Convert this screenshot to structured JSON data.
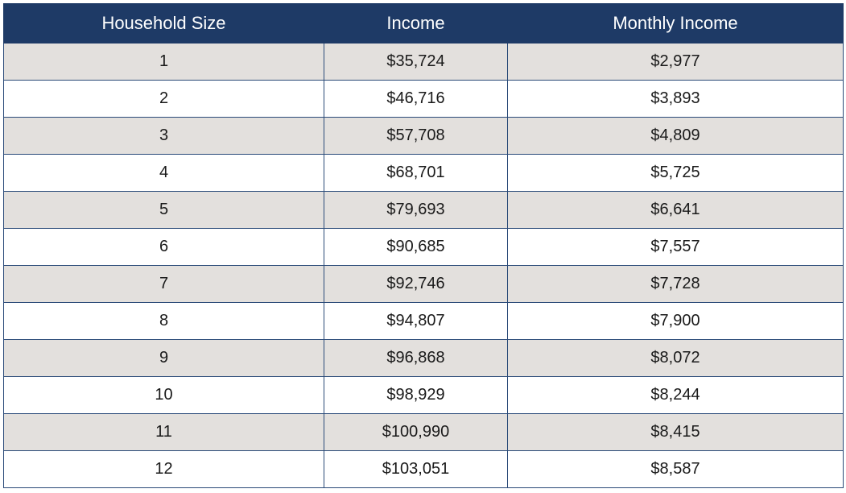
{
  "table": {
    "headers": [
      "Household Size",
      "Income",
      "Monthly Income"
    ],
    "rows": [
      [
        "1",
        "$35,724",
        "$2,977"
      ],
      [
        "2",
        "$46,716",
        "$3,893"
      ],
      [
        "3",
        "$57,708",
        "$4,809"
      ],
      [
        "4",
        "$68,701",
        "$5,725"
      ],
      [
        "5",
        "$79,693",
        "$6,641"
      ],
      [
        "6",
        "$90,685",
        "$7,557"
      ],
      [
        "7",
        "$92,746",
        "$7,728"
      ],
      [
        "8",
        "$94,807",
        "$7,900"
      ],
      [
        "9",
        "$96,868",
        "$8,072"
      ],
      [
        "10",
        "$98,929",
        "$8,244"
      ],
      [
        "11",
        "$100,990",
        "$8,415"
      ],
      [
        "12",
        "$103,051",
        "$8,587"
      ]
    ]
  },
  "colors": {
    "header_bg": "#1e3a66",
    "header_text": "#ffffff",
    "shaded_row_bg": "#e3e0dd",
    "plain_row_bg": "#ffffff",
    "border": "#2a4a78"
  }
}
